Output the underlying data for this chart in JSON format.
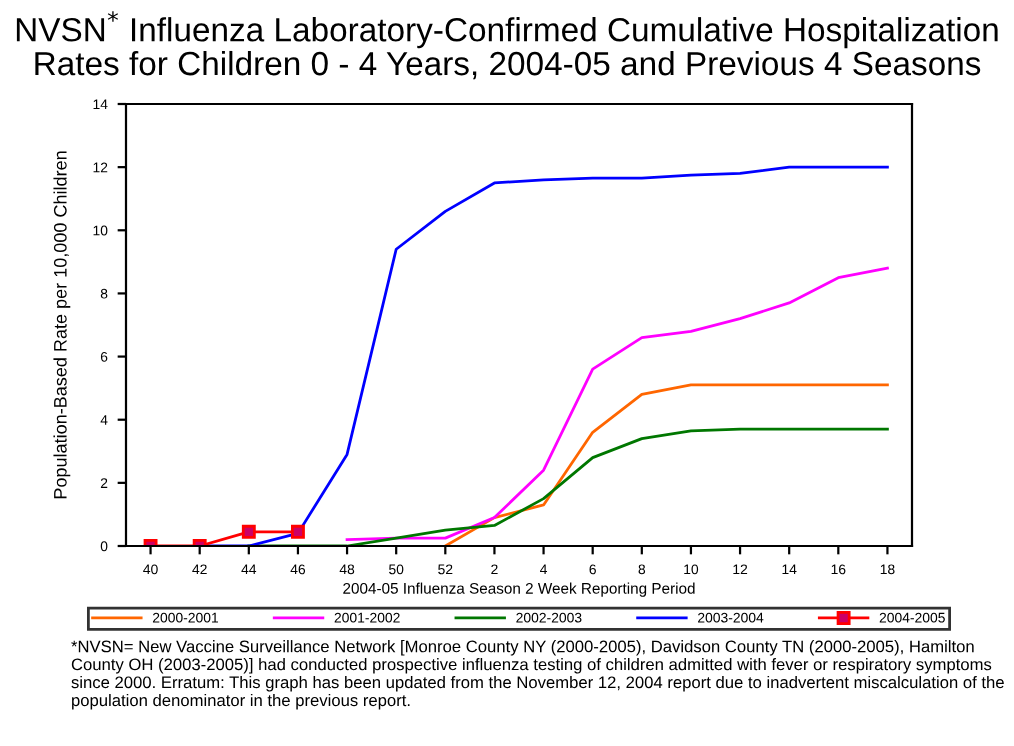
{
  "chart_data": {
    "type": "line",
    "title": "NVSN$^{*}$ Influenza Laboratory-Confirmed Cumulative Hospitalization\nRates for Children 0 - 4 Years, 2004-05 and Previous 4 Seasons",
    "xlabel": "2004-05 Influenza Season 2 Week Reporting Period",
    "ylabel": "Population-Based Rate per 10,000 Children",
    "categories": [
      "40",
      "42",
      "44",
      "46",
      "48",
      "50",
      "52",
      "2",
      "4",
      "6",
      "8",
      "10",
      "12",
      "14",
      "16",
      "18"
    ],
    "series": [
      {
        "name": "2000-2001",
        "color": "#ff6600",
        "values": [
          null,
          null,
          null,
          null,
          null,
          null,
          0,
          0.9,
          1.3,
          3.6,
          4.8,
          5.1,
          5.1,
          5.1,
          5.1,
          5.1
        ]
      },
      {
        "name": "2001-2002",
        "color": "#ff00ff",
        "values": [
          null,
          null,
          null,
          null,
          0.2,
          0.25,
          0.25,
          0.9,
          2.4,
          5.6,
          6.6,
          6.8,
          7.2,
          7.7,
          8.5,
          8.8
        ]
      },
      {
        "name": "2002-2003",
        "color": "#007700",
        "values": [
          null,
          null,
          0,
          0,
          0,
          0.25,
          0.5,
          0.65,
          1.5,
          2.8,
          3.4,
          3.65,
          3.7,
          3.7,
          3.7,
          3.7
        ]
      },
      {
        "name": "2003-2004",
        "color": "#0000ff",
        "values": [
          null,
          0,
          0,
          0.4,
          2.9,
          9.4,
          10.6,
          11.5,
          11.6,
          11.65,
          11.65,
          11.75,
          11.8,
          12.0,
          12.0,
          12.0
        ]
      },
      {
        "name": "2004-2005",
        "color": "#ff0000",
        "marker": "square",
        "values": [
          0,
          0,
          0.45,
          0.45,
          null,
          null,
          null,
          null,
          null,
          null,
          null,
          null,
          null,
          null,
          null,
          null
        ]
      }
    ],
    "ylim": [
      0,
      14
    ],
    "yticks": [
      0,
      2,
      4,
      6,
      8,
      10,
      12,
      14
    ],
    "grid": false,
    "legend": "bottom",
    "annotations": [
      "*NVSN= New Vaccine Surveillance Network [Monroe County NY (2000-2005), Davidson County TN (2000-2005), Hamilton County OH (2003-2005)] had conducted prospective influenza testing of children admitted with fever or respiratory symptoms since 2000. Erratum: This graph has been updated from the November 12, 2004 report due to inadvertent miscalculation of the population denominator in the previous report."
    ]
  }
}
